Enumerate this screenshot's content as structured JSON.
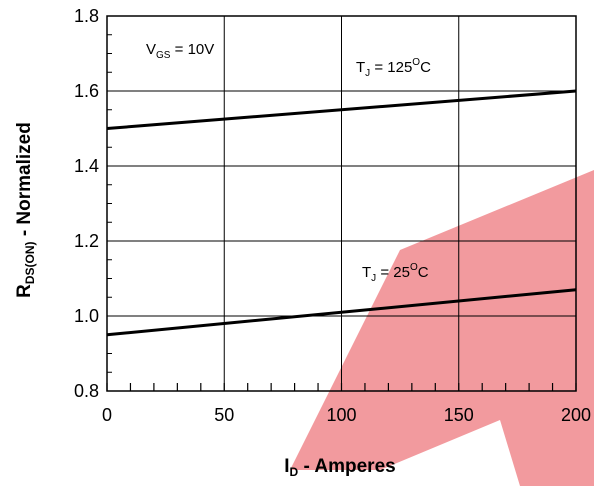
{
  "chart_data": {
    "type": "line",
    "x_ticks": [
      "0",
      "50",
      "100",
      "150",
      "200"
    ],
    "y_ticks": [
      "0.8",
      "1.0",
      "1.2",
      "1.4",
      "1.6",
      "1.8"
    ],
    "xlim": [
      0,
      200
    ],
    "ylim": [
      0.8,
      1.8
    ],
    "xlabel": {
      "main": "I",
      "sub": "D",
      "rest": " - Amperes"
    },
    "ylabel": {
      "main": "R",
      "sub": "DS(ON)",
      "rest": " - Normalized"
    },
    "grid": true,
    "series": [
      {
        "x": [
          0,
          200
        ],
        "y": [
          1.5,
          1.6
        ]
      },
      {
        "x": [
          0,
          200
        ],
        "y": [
          0.95,
          1.07
        ]
      }
    ],
    "annotations": {
      "vgs": {
        "main": "V",
        "sub": "GS",
        "rest": " = 10V"
      },
      "tj_high": {
        "main": "T",
        "sub": "J",
        "rest": " = 125",
        "sup": "O",
        "unit": "C"
      },
      "tj_low": {
        "main": "T",
        "sub": "J",
        "rest": " = 25",
        "sup": "O",
        "unit": "C"
      }
    },
    "watermark_color": "#e8474f"
  }
}
